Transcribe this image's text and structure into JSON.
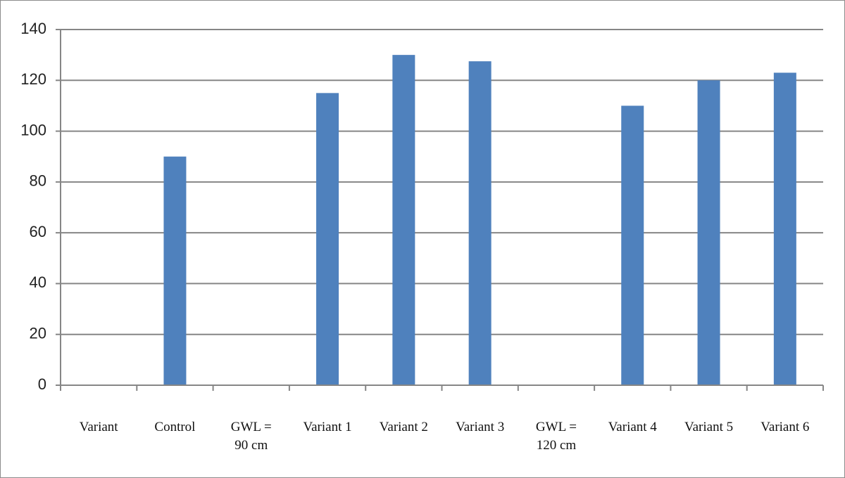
{
  "chart_data": {
    "type": "bar",
    "categories": [
      "Variant",
      "Control",
      "GWL =\n90 cm",
      "Variant 1",
      "Variant 2",
      "Variant 3",
      "GWL =\n120 cm",
      "Variant 4",
      "Variant 5",
      "Variant 6"
    ],
    "values": [
      null,
      90,
      null,
      115,
      130,
      127.5,
      null,
      110,
      120,
      123
    ],
    "color": "#4f81bd",
    "ylim": [
      0,
      140
    ],
    "yticks": [
      0,
      20,
      40,
      60,
      80,
      100,
      120,
      140
    ],
    "grid": true
  }
}
